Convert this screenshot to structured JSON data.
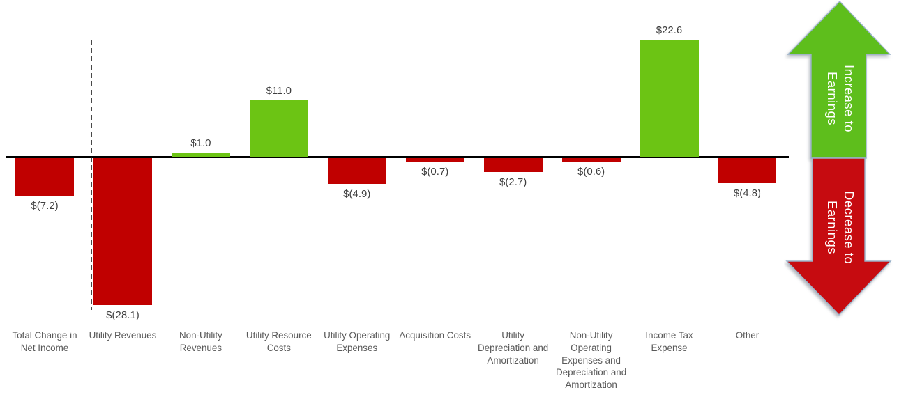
{
  "chart_data": {
    "type": "bar",
    "subtype": "waterfall-earnings-bridge",
    "title": "",
    "xlabel": "",
    "ylabel": "",
    "grid": false,
    "legend": "none",
    "ylim": [
      -30,
      24
    ],
    "categories": [
      "Total Change in Net Income",
      "Utility Revenues",
      "Non-Utility Revenues",
      "Utility Resource Costs",
      "Utility Operating Expenses",
      "Acquisition Costs",
      "Utility Depreciation and Amortization",
      "Non-Utility Operating Expenses and Depreciation and Amortization",
      "Income Tax Expense",
      "Other"
    ],
    "category_lines": [
      [
        "Total Change in",
        "Net Income"
      ],
      [
        "Utility Revenues"
      ],
      [
        "Non-Utility",
        "Revenues"
      ],
      [
        "Utility Resource",
        "Costs"
      ],
      [
        "Utility Operating",
        "Expenses"
      ],
      [
        "Acquisition Costs"
      ],
      [
        "Utility",
        "Depreciation and",
        "Amortization"
      ],
      [
        "Non-Utility",
        "Operating",
        "Expenses and",
        "Depreciation and",
        "Amortization"
      ],
      [
        "Income Tax",
        "Expense"
      ],
      [
        "Other"
      ]
    ],
    "values": [
      -7.2,
      -28.1,
      1.0,
      11.0,
      -4.9,
      -0.7,
      -2.7,
      -0.6,
      22.6,
      -4.8
    ],
    "value_labels": [
      "$(7.2)",
      "$(28.1)",
      "$1.0",
      "$11.0",
      "$(4.9)",
      "$(0.7)",
      "$(2.7)",
      "$(0.6)",
      "$22.6",
      "$(4.8)"
    ],
    "colors": {
      "increase": "#6CC414",
      "decrease": "#C00000",
      "axis_line": "#000000",
      "value_label": "#3F3F3F",
      "category_label": "#595959",
      "arrow_up_fill": "#5EBE1C",
      "arrow_down_fill": "#C60B10",
      "arrow_border": "#9AB2C9",
      "arrow_text": "#FFFFFF"
    },
    "annotations": {
      "up_arrow_label": "Increase to Earnings",
      "down_arrow_label": "Decrease to Earnings"
    }
  }
}
